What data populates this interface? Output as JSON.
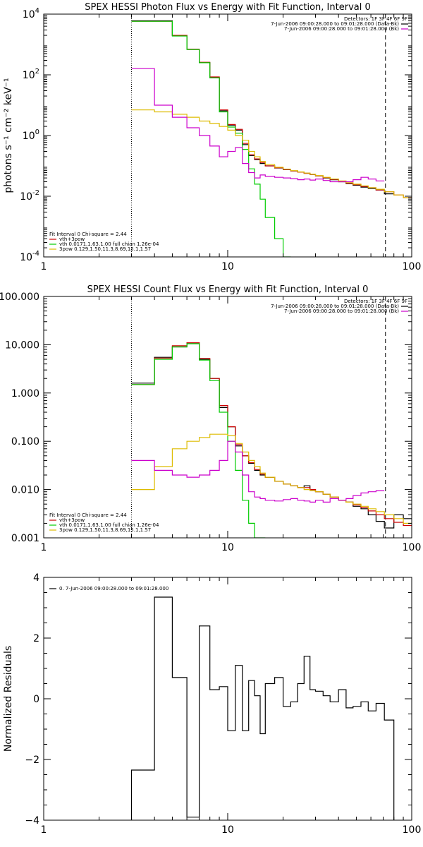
{
  "chart_data": [
    {
      "type": "line",
      "title": "SPEX HESSI Photon Flux vs Energy with Fit Function, Interval 0",
      "ylabel": "photons s⁻¹ cm⁻² keV⁻¹",
      "x_scale": "log",
      "y_scale": "log",
      "xlim": [
        1,
        100
      ],
      "ylim": [
        0.0001,
        10000
      ],
      "x_ticks": [
        {
          "v": 1,
          "label": "1"
        },
        {
          "v": 10,
          "label": "10"
        },
        {
          "v": 100,
          "label": "100"
        }
      ],
      "y_ticks": [
        {
          "v": 0.0001,
          "base": "10",
          "exp": "-4"
        },
        {
          "v": 0.01,
          "base": "10",
          "exp": "-2"
        },
        {
          "v": 1,
          "base": "10",
          "exp": "0"
        },
        {
          "v": 100,
          "base": "10",
          "exp": "2"
        },
        {
          "v": 10000,
          "base": "10",
          "exp": "4"
        }
      ],
      "edges": [
        3,
        4,
        5,
        6,
        7,
        8,
        9,
        10,
        11,
        12,
        13,
        14,
        15,
        16,
        18,
        20,
        22,
        24,
        26,
        28,
        30,
        33,
        36,
        40,
        44,
        48,
        53,
        58,
        64,
        71,
        80,
        90,
        100
      ],
      "vlines": [
        {
          "x": 3,
          "style": "dotted",
          "color": "#000000"
        },
        {
          "x": 72,
          "style": "dashed",
          "color": "#000000"
        }
      ],
      "legend_right": [
        {
          "text": "Detectors: 1F 3F 4F 6F 9F",
          "color": ""
        },
        {
          "text": "7-Jun-2006 09:00:28.000 to 09:01:28.000 (Data-Bk)",
          "color": "#000000"
        },
        {
          "text": "7-Jun-2006 09:00:28.000 to 09:01:28.000 (Bk)",
          "color": "#cc00cc"
        }
      ],
      "legend_left": [
        {
          "text": "Fit Interval 0   Chi-square = 2.44",
          "color": ""
        },
        {
          "text": "vth+3pow",
          "color": "#cc0000"
        },
        {
          "text": "vth 0.0171,1.63,1.00  full chian 1.26e-04",
          "color": "#00cc00"
        },
        {
          "text": "3pow 0.129,1.50,11.3,8.69,15.1,1.57",
          "color": "#ddbb00"
        }
      ],
      "series": [
        {
          "name": "7-Jun-2006 09:00:28.000 to 09:01:28.000 (Data-Bk)",
          "color": "#000000",
          "upto": 80,
          "values": [
            6000,
            6000,
            2000,
            700,
            250,
            80,
            6.5,
            2.2,
            1.5,
            0.5,
            0.22,
            0.16,
            0.12,
            0.1,
            0.085,
            0.075,
            0.068,
            0.062,
            0.057,
            0.052,
            0.047,
            0.04,
            0.035,
            0.03,
            0.026,
            0.023,
            0.02,
            0.018,
            0.016,
            0.012
          ]
        },
        {
          "name": "vth+3pow",
          "color": "#cc0000",
          "upto": 100,
          "values": [
            5800,
            5800,
            2000,
            700,
            260,
            85,
            7,
            2.3,
            1.6,
            0.55,
            0.23,
            0.17,
            0.13,
            0.1,
            0.086,
            0.076,
            0.068,
            0.062,
            0.057,
            0.052,
            0.047,
            0.041,
            0.036,
            0.031,
            0.027,
            0.024,
            0.021,
            0.019,
            0.016,
            0.014,
            0.011,
            0.009
          ]
        },
        {
          "name": "vth",
          "color": "#00cc00",
          "upto": 22,
          "values": [
            5800,
            5800,
            1900,
            680,
            250,
            80,
            6,
            1.9,
            1.2,
            0.35,
            0.08,
            0.025,
            0.008,
            0.002,
            0.0004,
            0.0001
          ]
        },
        {
          "name": "3pow",
          "color": "#ddbb00",
          "upto": 100,
          "values": [
            7,
            6,
            5,
            4,
            3,
            2.5,
            2,
            1.5,
            1,
            0.7,
            0.3,
            0.2,
            0.14,
            0.11,
            0.09,
            0.078,
            0.07,
            0.063,
            0.058,
            0.053,
            0.048,
            0.042,
            0.037,
            0.032,
            0.028,
            0.025,
            0.022,
            0.019,
            0.017,
            0.014,
            0.011,
            0.009
          ]
        },
        {
          "name": "7-Jun-2006 09:00:28.000 to 09:01:28.000 (Bk)",
          "color": "#cc00cc",
          "upto": 72,
          "values": [
            160,
            10,
            4,
            1.8,
            1,
            0.45,
            0.2,
            0.3,
            0.4,
            0.12,
            0.06,
            0.04,
            0.05,
            0.045,
            0.042,
            0.04,
            0.038,
            0.035,
            0.037,
            0.034,
            0.037,
            0.033,
            0.03,
            0.03,
            0.03,
            0.035,
            0.042,
            0.037,
            0.032
          ]
        }
      ]
    },
    {
      "type": "line",
      "title": "SPEX HESSI Count Flux vs Energy with Fit Function, Interval 0",
      "ylabel": "",
      "x_scale": "log",
      "y_scale": "log",
      "xlim": [
        1,
        100
      ],
      "ylim": [
        0.001,
        100
      ],
      "x_ticks": [
        {
          "v": 1,
          "label": "1"
        },
        {
          "v": 10,
          "label": "10"
        },
        {
          "v": 100,
          "label": "100"
        }
      ],
      "y_ticks": [
        {
          "v": 0.001,
          "label": "0.001"
        },
        {
          "v": 0.01,
          "label": "0.010"
        },
        {
          "v": 0.1,
          "label": "0.100"
        },
        {
          "v": 1,
          "label": "1.000"
        },
        {
          "v": 10,
          "label": "10.000"
        },
        {
          "v": 100,
          "label": "100.000"
        }
      ],
      "edges": [
        3,
        4,
        5,
        6,
        7,
        8,
        9,
        10,
        11,
        12,
        13,
        14,
        15,
        16,
        18,
        20,
        22,
        24,
        26,
        28,
        30,
        33,
        36,
        40,
        44,
        48,
        53,
        58,
        64,
        71,
        80,
        90,
        100
      ],
      "vlines": [
        {
          "x": 3,
          "style": "dotted",
          "color": "#000000"
        },
        {
          "x": 72,
          "style": "dashed",
          "color": "#000000"
        }
      ],
      "legend_right": [
        {
          "text": "Detectors: 1F 3F 4F 6F 9F",
          "color": ""
        },
        {
          "text": "7-Jun-2006 09:00:28.000 to 09:01:28.000 (Data-Bk)",
          "color": "#000000"
        },
        {
          "text": "7-Jun-2006 09:00:28.000 to 09:01:28.000 (Bk)",
          "color": "#cc00cc"
        }
      ],
      "legend_left": [
        {
          "text": "Fit Interval 0   Chi-square = 2.44",
          "color": ""
        },
        {
          "text": "vth+3pow",
          "color": "#cc0000"
        },
        {
          "text": "vth 0.0171,1.63,1.00  full chian 1.26e-04",
          "color": "#00cc00"
        },
        {
          "text": "3pow 0.129,1.50,11.3,8.69,15.1,1.57",
          "color": "#ddbb00"
        }
      ],
      "series": [
        {
          "name": "7-Jun-2006 09:00:28.000 to 09:01:28.000 (Data-Bk)",
          "color": "#000000",
          "upto": 100,
          "values": [
            1.6,
            5.5,
            9,
            11,
            5,
            2,
            0.5,
            0.2,
            0.08,
            0.05,
            0.035,
            0.025,
            0.02,
            0.018,
            0.015,
            0.013,
            0.012,
            0.011,
            0.012,
            0.01,
            0.009,
            0.008,
            0.007,
            0.006,
            0.0055,
            0.0045,
            0.004,
            0.003,
            0.0022,
            0.0016,
            0.003,
            0.0025
          ]
        },
        {
          "name": "vth+3pow",
          "color": "#cc0000",
          "upto": 100,
          "values": [
            1.5,
            5.3,
            9.5,
            11,
            5.2,
            2,
            0.55,
            0.2,
            0.085,
            0.05,
            0.036,
            0.026,
            0.021,
            0.018,
            0.015,
            0.013,
            0.012,
            0.011,
            0.011,
            0.01,
            0.009,
            0.008,
            0.007,
            0.006,
            0.0055,
            0.0048,
            0.0042,
            0.0036,
            0.003,
            0.0025,
            0.0021,
            0.0018
          ]
        },
        {
          "name": "vth",
          "color": "#00cc00",
          "upto": 16,
          "values": [
            1.5,
            5,
            9,
            10.5,
            4.8,
            1.8,
            0.4,
            0.1,
            0.025,
            0.006,
            0.002,
            0.001,
            0.001
          ]
        },
        {
          "name": "3pow",
          "color": "#ddbb00",
          "upto": 100,
          "values": [
            0.01,
            0.03,
            0.07,
            0.1,
            0.12,
            0.14,
            0.14,
            0.13,
            0.09,
            0.06,
            0.04,
            0.03,
            0.022,
            0.018,
            0.015,
            0.013,
            0.012,
            0.011,
            0.01,
            0.0095,
            0.009,
            0.008,
            0.007,
            0.006,
            0.0055,
            0.005,
            0.0045,
            0.004,
            0.0035,
            0.003,
            0.0025,
            0.002
          ]
        },
        {
          "name": "7-Jun-2006 09:00:28.000 to 09:01:28.000 (Bk)",
          "color": "#cc00cc",
          "upto": 72,
          "values": [
            0.04,
            0.025,
            0.02,
            0.018,
            0.02,
            0.025,
            0.04,
            0.1,
            0.06,
            0.02,
            0.009,
            0.007,
            0.0065,
            0.006,
            0.0058,
            0.0062,
            0.0065,
            0.006,
            0.0058,
            0.0055,
            0.006,
            0.0055,
            0.0065,
            0.006,
            0.0065,
            0.0075,
            0.0085,
            0.009,
            0.0095
          ]
        }
      ]
    },
    {
      "type": "line",
      "title": "",
      "ylabel": "Normalized Residuals",
      "x_scale": "log",
      "y_scale": "linear",
      "xlim": [
        1,
        100
      ],
      "ylim": [
        -4,
        4
      ],
      "x_ticks": [
        {
          "v": 1,
          "label": "1"
        },
        {
          "v": 10,
          "label": "10"
        },
        {
          "v": 100,
          "label": "100"
        }
      ],
      "y_ticks": [
        {
          "v": -4,
          "label": "−4"
        },
        {
          "v": -2,
          "label": "−2"
        },
        {
          "v": 0,
          "label": "0"
        },
        {
          "v": 2,
          "label": "2"
        },
        {
          "v": 4,
          "label": "4"
        }
      ],
      "edges": [
        3,
        4,
        5,
        6,
        7,
        8,
        9,
        10,
        11,
        12,
        13,
        14,
        15,
        16,
        18,
        20,
        22,
        24,
        26,
        28,
        30,
        33,
        36,
        40,
        44,
        48,
        53,
        58,
        64,
        71,
        80,
        90,
        100
      ],
      "vlines": [],
      "legend_right": [],
      "legend_left": [
        {
          "text": "0.  7-Jun-2006 09:00:28.000 to 09:01:28.000",
          "color": "#000000"
        }
      ],
      "series": [
        {
          "name": "0.  7-Jun-2006 09:00:28.000 to 09:01:28.000",
          "color": "#000000",
          "upto": 72,
          "drop_end": -4,
          "values": [
            -2.35,
            3.35,
            0.7,
            -3.9,
            2.4,
            0.3,
            0.4,
            -1.05,
            1.1,
            -1.05,
            0.6,
            0.1,
            -1.15,
            0.5,
            0.7,
            -0.25,
            -0.1,
            0.5,
            1.4,
            0.3,
            0.25,
            0.1,
            -0.1,
            0.3,
            -0.3,
            -0.25,
            -0.1,
            -0.4,
            -0.15,
            -0.7
          ]
        }
      ]
    }
  ]
}
